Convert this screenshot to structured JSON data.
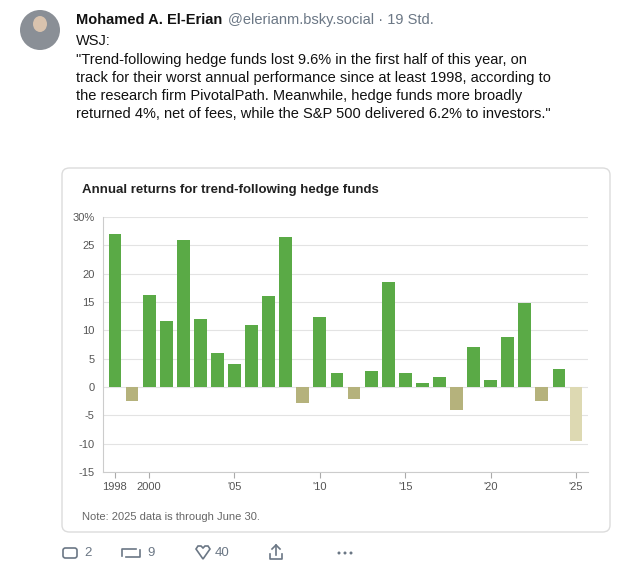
{
  "post": {
    "author": "Mohamed A. El-Erian",
    "handle": "@elerianm.bsky.social · 19 Std.",
    "source": "WSJ:",
    "quote": "\"Trend-following hedge funds lost 9.6% in the first half of this year, on track for their worst annual performance since at least 1998, according to the research firm PivotalPath. Meanwhile, hedge funds more broadly returned 4%, net of fees, while the S&P 500 delivered 6.2% to investors.\"",
    "replies": 2,
    "reposts": 9,
    "likes": 40
  },
  "chart_data": {
    "type": "bar",
    "title": "Annual returns for trend-following hedge funds",
    "note": "Note: 2025 data is through June 30.",
    "x": [
      1998,
      1999,
      2000,
      2001,
      2002,
      2003,
      2004,
      2005,
      2006,
      2007,
      2008,
      2009,
      2010,
      2011,
      2012,
      2013,
      2014,
      2015,
      2016,
      2017,
      2018,
      2019,
      2020,
      2021,
      2022,
      2023,
      2024,
      2025
    ],
    "values": [
      27,
      -2.5,
      16.3,
      11.7,
      26,
      12,
      6,
      4,
      11,
      16,
      26.5,
      -2.8,
      12.4,
      2.5,
      -2.2,
      2.8,
      18.5,
      2.5,
      0.7,
      1.8,
      -4,
      7,
      1.3,
      8.8,
      14.8,
      -2.5,
      3.2,
      -9.6
    ],
    "colors": [
      "#5aaa46",
      "#b5b27c",
      "#5aaa46",
      "#5aaa46",
      "#5aaa46",
      "#5aaa46",
      "#5aaa46",
      "#5aaa46",
      "#5aaa46",
      "#5aaa46",
      "#5aaa46",
      "#b5b27c",
      "#5aaa46",
      "#5aaa46",
      "#b5b27c",
      "#5aaa46",
      "#5aaa46",
      "#5aaa46",
      "#5aaa46",
      "#5aaa46",
      "#b5b27c",
      "#5aaa46",
      "#5aaa46",
      "#5aaa46",
      "#5aaa46",
      "#b5b27c",
      "#5aaa46",
      "#ddd9b2"
    ],
    "xlim": [
      1997.3,
      2025.7
    ],
    "xticks": [
      1998,
      2000,
      {
        "value": 2005,
        "label": "'05"
      },
      {
        "value": 2010,
        "label": "'10"
      },
      {
        "value": 2015,
        "label": "'15"
      },
      {
        "value": 2020,
        "label": "'20"
      },
      {
        "value": 2025,
        "label": "'25"
      }
    ],
    "ylim": [
      -15,
      30
    ],
    "yticks": [
      -15,
      -10,
      -5,
      0,
      5,
      10,
      15,
      20,
      25,
      {
        "value": 30,
        "label": "30%"
      }
    ],
    "grid": true
  }
}
